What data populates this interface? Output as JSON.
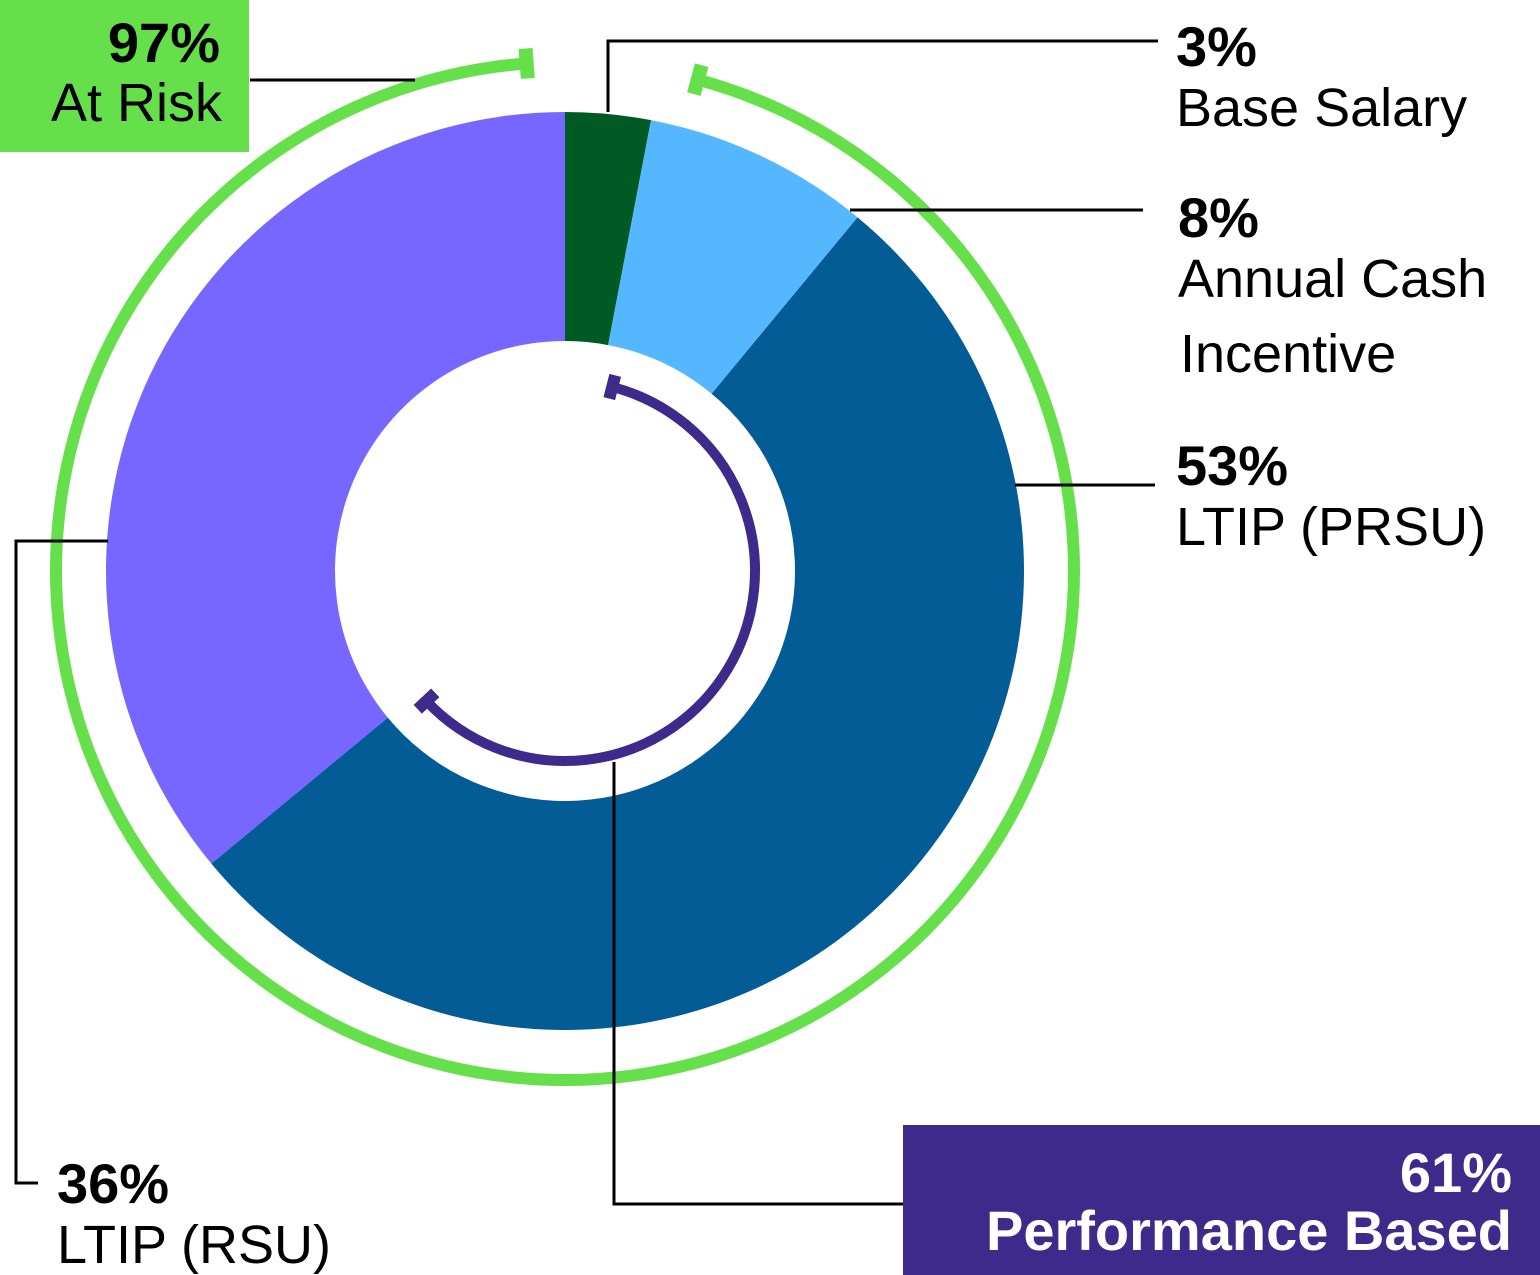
{
  "chart_data": {
    "type": "pie",
    "variant": "donut",
    "segments": [
      {
        "label_line1": "Base Salary",
        "label_line2": "",
        "value": 3,
        "pct_text": "3%",
        "color": "#005A23"
      },
      {
        "label_line1": "Annual Cash",
        "label_line2": "Incentive",
        "value": 8,
        "pct_text": "8%",
        "color": "#55B8FF"
      },
      {
        "label_line1": "LTIP (PRSU)",
        "label_line2": "",
        "value": 53,
        "pct_text": "53%",
        "color": "#045C96"
      },
      {
        "label_line1": "LTIP (RSU)",
        "label_line2": "",
        "value": 36,
        "pct_text": "36%",
        "color": "#7766FF"
      }
    ],
    "groups": {
      "at_risk": {
        "pct_text": "97%",
        "label": "At Risk",
        "value": 97,
        "color": "#66E04A"
      },
      "performance_based": {
        "pct_text": "61%",
        "label": "Performance Based",
        "value": 61,
        "color": "#3E2A8A"
      }
    },
    "legend": "callouts"
  }
}
